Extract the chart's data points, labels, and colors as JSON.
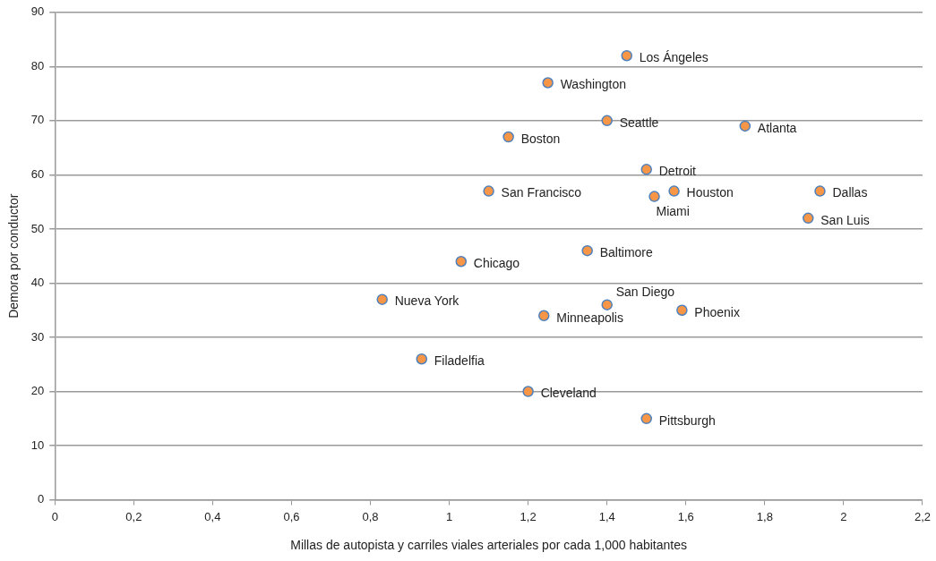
{
  "chart_data": {
    "type": "scatter",
    "xlabel": "Millas de autopista y carriles viales arteriales por cada 1,000 habitantes",
    "ylabel": "Demora por conductor",
    "x": [
      1.45,
      1.25,
      1.4,
      1.15,
      1.75,
      1.5,
      1.1,
      1.52,
      1.57,
      1.94,
      1.91,
      1.35,
      1.03,
      0.83,
      1.4,
      1.24,
      1.59,
      0.93,
      1.2,
      1.5
    ],
    "series": [
      {
        "color": "#f79646",
        "values": [
          82,
          77,
          70,
          67,
          69,
          61,
          57,
          56,
          57,
          57,
          52,
          46,
          44,
          37,
          36,
          34,
          35,
          26,
          20,
          15
        ]
      }
    ],
    "annotations": [
      {
        "text": "Los Ángeles",
        "x": 1.45,
        "y": 82
      },
      {
        "text": "Washington",
        "x": 1.25,
        "y": 77
      },
      {
        "text": "Seattle",
        "x": 1.4,
        "y": 70
      },
      {
        "text": "Boston",
        "x": 1.15,
        "y": 67
      },
      {
        "text": "Atlanta",
        "x": 1.75,
        "y": 69
      },
      {
        "text": "Detroit",
        "x": 1.5,
        "y": 61
      },
      {
        "text": "San Francisco",
        "x": 1.1,
        "y": 57
      },
      {
        "text": "Miami",
        "x": 1.52,
        "y": 56
      },
      {
        "text": "Houston",
        "x": 1.57,
        "y": 57
      },
      {
        "text": "Dallas",
        "x": 1.94,
        "y": 57
      },
      {
        "text": "San Luis",
        "x": 1.91,
        "y": 52
      },
      {
        "text": "Baltimore",
        "x": 1.35,
        "y": 46
      },
      {
        "text": "Chicago",
        "x": 1.03,
        "y": 44
      },
      {
        "text": "Nueva York",
        "x": 0.83,
        "y": 37
      },
      {
        "text": "San Diego",
        "x": 1.4,
        "y": 36
      },
      {
        "text": "Minneapolis",
        "x": 1.24,
        "y": 34
      },
      {
        "text": "Phoenix",
        "x": 1.59,
        "y": 35
      },
      {
        "text": "Filadelfia",
        "x": 0.93,
        "y": 26
      },
      {
        "text": "Cleveland",
        "x": 1.2,
        "y": 20
      },
      {
        "text": "Pittsburgh",
        "x": 1.5,
        "y": 15
      }
    ],
    "xlim": [
      0,
      2.2
    ],
    "xticks": [
      0,
      {
        "value": 0.2,
        "label": "0,2"
      },
      {
        "value": 0.4,
        "label": "0,4"
      },
      {
        "value": 0.6,
        "label": "0,6"
      },
      {
        "value": 0.8,
        "label": "0,8"
      },
      1,
      {
        "value": 1.2,
        "label": "1,2"
      },
      {
        "value": 1.4,
        "label": "1,4"
      },
      {
        "value": 1.6,
        "label": "1,6"
      },
      {
        "value": 1.8,
        "label": "1,8"
      },
      2,
      {
        "value": 2.2,
        "label": "2,2"
      }
    ],
    "ylim": [
      0,
      90
    ],
    "yticks": [
      0,
      10,
      20,
      30,
      40,
      50,
      60,
      70,
      80,
      90
    ],
    "grid": "y",
    "legend": false,
    "marker": "circle"
  }
}
